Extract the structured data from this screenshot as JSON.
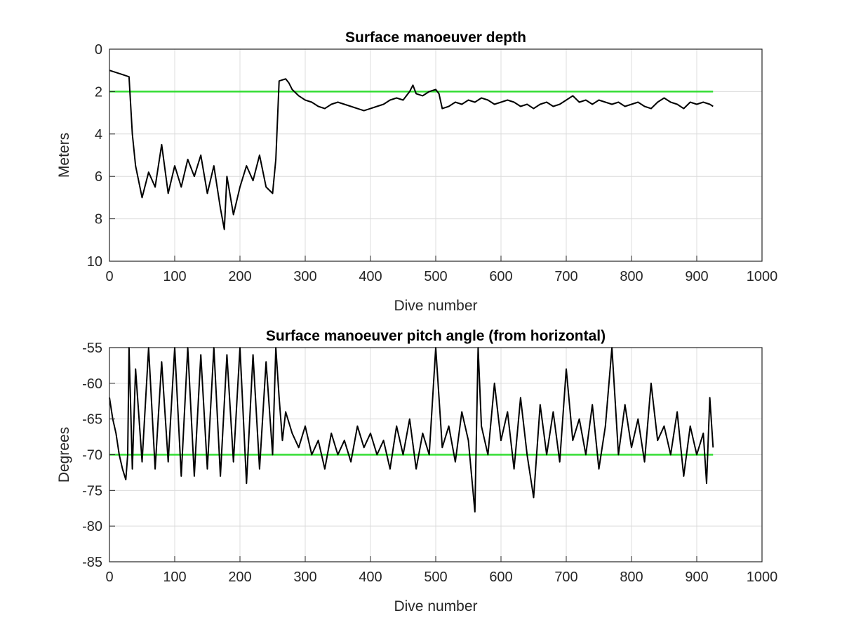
{
  "chart_data": [
    {
      "type": "line",
      "title": "Surface manoeuver depth",
      "xlabel": "Dive number",
      "ylabel": "Meters",
      "xlim": [
        0,
        1000
      ],
      "ylim": [
        0,
        10
      ],
      "y_reversed": true,
      "grid": true,
      "xticks": [
        "0",
        "100",
        "200",
        "300",
        "400",
        "500",
        "600",
        "700",
        "800",
        "900",
        "1000"
      ],
      "yticks": [
        "0",
        "2",
        "4",
        "6",
        "8",
        "10"
      ],
      "reference_line": {
        "y": 2,
        "x_range": [
          0,
          925
        ],
        "color": "#33dd33"
      },
      "series": [
        {
          "color": "#000000",
          "dive_range": [
            0,
            925
          ],
          "x": [
            0,
            10,
            20,
            30,
            35,
            40,
            50,
            60,
            70,
            80,
            90,
            100,
            110,
            120,
            130,
            140,
            150,
            160,
            170,
            176,
            180,
            190,
            200,
            210,
            220,
            230,
            240,
            250,
            255,
            260,
            270,
            275,
            280,
            290,
            300,
            310,
            320,
            330,
            340,
            350,
            360,
            370,
            380,
            390,
            400,
            410,
            420,
            430,
            440,
            450,
            460,
            465,
            470,
            480,
            490,
            500,
            505,
            510,
            520,
            530,
            540,
            550,
            560,
            570,
            580,
            590,
            600,
            610,
            620,
            630,
            640,
            650,
            660,
            670,
            680,
            690,
            700,
            710,
            720,
            730,
            740,
            750,
            760,
            770,
            780,
            790,
            800,
            810,
            820,
            830,
            840,
            850,
            860,
            870,
            880,
            890,
            900,
            910,
            920,
            925
          ],
          "y": [
            1.0,
            1.1,
            1.2,
            1.3,
            4.0,
            5.5,
            7.0,
            5.8,
            6.5,
            4.5,
            6.8,
            5.5,
            6.5,
            5.2,
            6.0,
            5.0,
            6.8,
            5.5,
            7.5,
            8.5,
            6.0,
            7.8,
            6.5,
            5.5,
            6.2,
            5.0,
            6.5,
            6.8,
            5.2,
            1.5,
            1.4,
            1.6,
            1.9,
            2.2,
            2.4,
            2.5,
            2.7,
            2.8,
            2.6,
            2.5,
            2.6,
            2.7,
            2.8,
            2.9,
            2.8,
            2.7,
            2.6,
            2.4,
            2.3,
            2.4,
            2.0,
            1.7,
            2.1,
            2.2,
            2.0,
            1.9,
            2.1,
            2.8,
            2.7,
            2.5,
            2.6,
            2.4,
            2.5,
            2.3,
            2.4,
            2.6,
            2.5,
            2.4,
            2.5,
            2.7,
            2.6,
            2.8,
            2.6,
            2.5,
            2.7,
            2.6,
            2.4,
            2.2,
            2.5,
            2.4,
            2.6,
            2.4,
            2.5,
            2.6,
            2.5,
            2.7,
            2.6,
            2.5,
            2.7,
            2.8,
            2.5,
            2.3,
            2.5,
            2.6,
            2.8,
            2.5,
            2.6,
            2.5,
            2.6,
            2.7
          ]
        }
      ]
    },
    {
      "type": "line",
      "title": "Surface manoeuver pitch angle (from horizontal)",
      "xlabel": "Dive number",
      "ylabel": "Degrees",
      "xlim": [
        0,
        1000
      ],
      "ylim": [
        -85,
        -55
      ],
      "grid": true,
      "xticks": [
        "0",
        "100",
        "200",
        "300",
        "400",
        "500",
        "600",
        "700",
        "800",
        "900",
        "1000"
      ],
      "yticks": [
        "-55",
        "-60",
        "-65",
        "-70",
        "-75",
        "-80",
        "-85"
      ],
      "reference_line": {
        "y": -70,
        "x_range": [
          0,
          925
        ],
        "color": "#33dd33"
      },
      "series": [
        {
          "color": "#000000",
          "dive_range": [
            0,
            925
          ],
          "x": [
            0,
            5,
            10,
            15,
            20,
            25,
            28,
            30,
            35,
            40,
            50,
            60,
            70,
            80,
            90,
            100,
            110,
            120,
            130,
            140,
            150,
            160,
            170,
            180,
            190,
            200,
            210,
            220,
            230,
            240,
            250,
            255,
            260,
            265,
            270,
            280,
            290,
            300,
            310,
            320,
            330,
            340,
            350,
            360,
            370,
            380,
            390,
            400,
            410,
            420,
            430,
            440,
            450,
            460,
            470,
            480,
            490,
            500,
            510,
            520,
            530,
            540,
            550,
            560,
            565,
            570,
            580,
            590,
            600,
            610,
            620,
            630,
            640,
            650,
            660,
            670,
            680,
            690,
            700,
            710,
            720,
            730,
            740,
            750,
            760,
            770,
            780,
            790,
            800,
            810,
            820,
            830,
            840,
            850,
            860,
            870,
            880,
            890,
            900,
            910,
            915,
            920,
            925
          ],
          "y": [
            -62,
            -65,
            -67,
            -70,
            -72,
            -73.5,
            -70,
            -55,
            -72,
            -58,
            -71,
            -55,
            -72,
            -57,
            -71,
            -55,
            -73,
            -55,
            -73,
            -56,
            -72,
            -55,
            -73,
            -56,
            -71,
            -55,
            -74,
            -56,
            -72,
            -57,
            -70,
            -55,
            -62,
            -68,
            -64,
            -67,
            -69,
            -66,
            -70,
            -68,
            -72,
            -67,
            -70,
            -68,
            -71,
            -66,
            -69,
            -67,
            -70,
            -68,
            -72,
            -66,
            -70,
            -65,
            -72,
            -67,
            -70,
            -55,
            -69,
            -66,
            -71,
            -64,
            -68,
            -78,
            -55,
            -66,
            -70,
            -60,
            -68,
            -64,
            -72,
            -62,
            -70,
            -76,
            -63,
            -70,
            -64,
            -71,
            -58,
            -68,
            -65,
            -70,
            -63,
            -72,
            -66,
            -55,
            -70,
            -63,
            -69,
            -65,
            -71,
            -60,
            -68,
            -66,
            -70,
            -64,
            -73,
            -66,
            -70,
            -67,
            -74,
            -62,
            -69
          ]
        }
      ]
    }
  ]
}
